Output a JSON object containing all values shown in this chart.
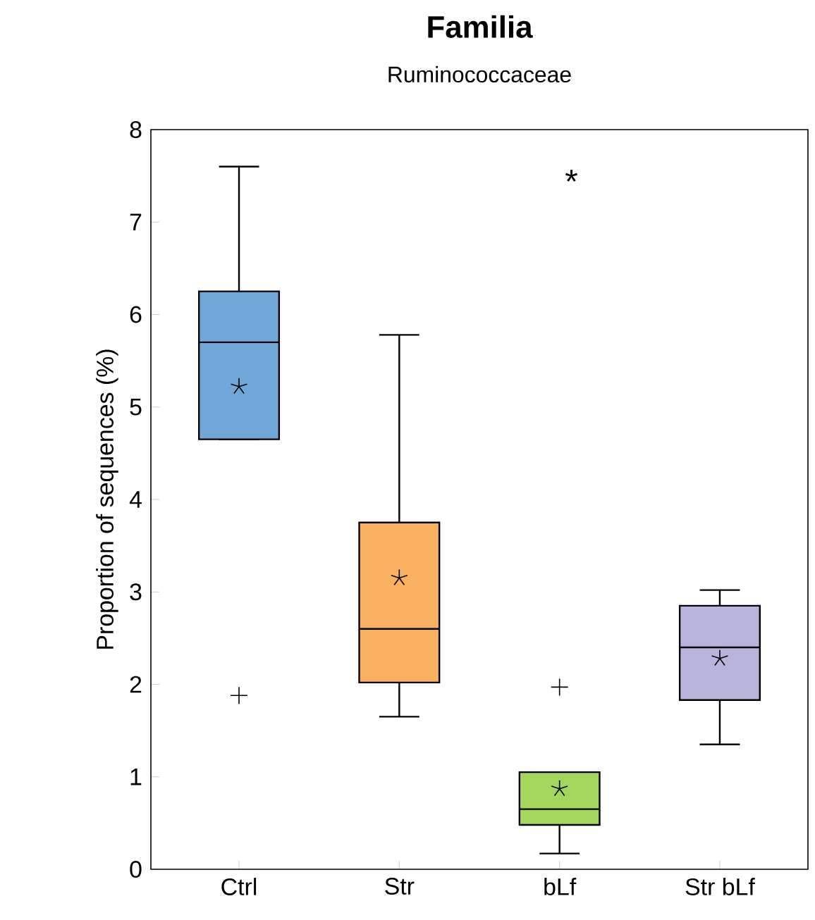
{
  "chart_data": {
    "type": "box",
    "title": "Familia",
    "subtitle": "Ruminococcaceae",
    "ylabel": "Proportion of sequences (%)",
    "categories": [
      "Ctrl",
      "Str",
      "bLf",
      "Str bLf"
    ],
    "colors": [
      "#6fa8d6",
      "#f9b060",
      "#a4d65e",
      "#b8b4dc"
    ],
    "boxes": [
      {
        "low": 4.65,
        "q1": 4.65,
        "median": 5.7,
        "q3": 6.25,
        "high": 7.6,
        "mean": 5.22,
        "outliers": [
          1.88
        ]
      },
      {
        "low": 1.65,
        "q1": 2.02,
        "median": 2.6,
        "q3": 3.75,
        "high": 5.78,
        "mean": 3.15
      },
      {
        "low": 0.17,
        "q1": 0.48,
        "median": 0.65,
        "q3": 1.05,
        "high": 1.05,
        "mean": 0.87,
        "outliers": [
          1.97
        ]
      },
      {
        "low": 1.35,
        "q1": 1.83,
        "median": 2.4,
        "q3": 2.85,
        "high": 3.02,
        "mean": 2.28
      }
    ],
    "ylim": [
      0,
      8
    ],
    "yticks": [
      0,
      1,
      2,
      3,
      4,
      5,
      6,
      7,
      8
    ],
    "grid": false,
    "annotations": [
      "*"
    ]
  }
}
